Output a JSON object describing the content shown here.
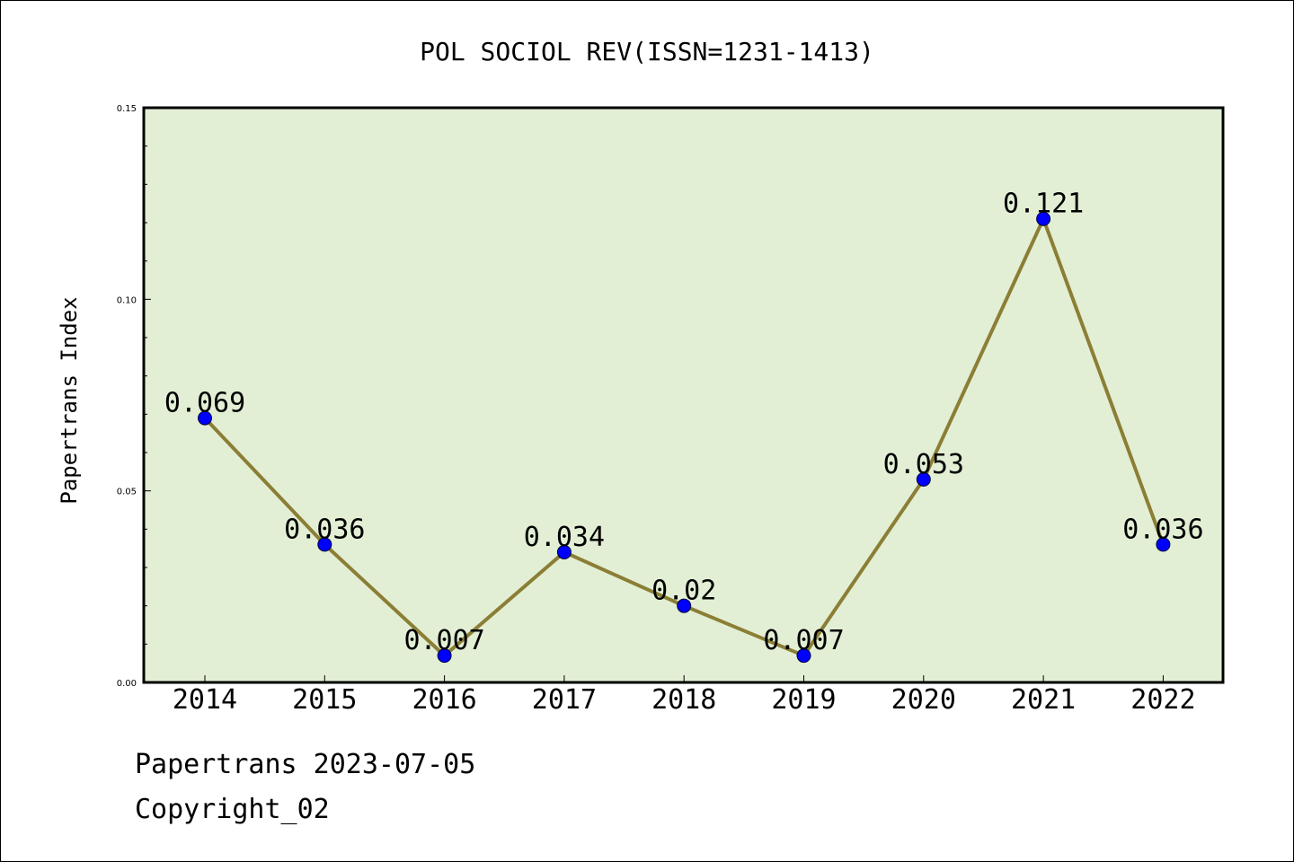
{
  "chart_data": {
    "type": "line",
    "title": "POL SOCIOL REV(ISSN=1231-1413)",
    "xlabel": "",
    "ylabel": "Papertrans Index",
    "categories": [
      "2014",
      "2015",
      "2016",
      "2017",
      "2018",
      "2019",
      "2020",
      "2021",
      "2022"
    ],
    "series": [
      {
        "values": [
          0.069,
          0.036,
          0.007,
          0.034,
          0.02,
          0.007,
          0.053,
          0.121,
          0.036
        ],
        "labels": [
          "0.069",
          "0.036",
          "0.007",
          "0.034",
          "0.02",
          "0.007",
          "0.053",
          "0.121",
          "0.036"
        ]
      }
    ],
    "ylim": [
      0.0,
      0.15
    ],
    "yticks": [
      "0.00",
      "0.05",
      "0.10",
      "0.15"
    ],
    "grid": false,
    "colors": {
      "plot_background": "#e2efd5",
      "line": "#8b7e35",
      "marker": "#0000ff"
    }
  },
  "footer": {
    "line1": "Papertrans 2023-07-05",
    "line2": "Copyright_02"
  }
}
